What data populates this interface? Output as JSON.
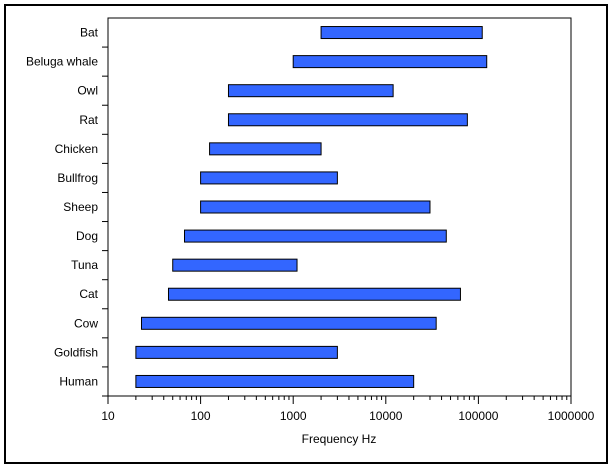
{
  "chart_data": {
    "type": "bar",
    "orientation": "horizontal-range",
    "xlabel": "Frequency  Hz",
    "x_scale": "log",
    "xlim": [
      10,
      1000000
    ],
    "x_ticks": [
      {
        "value": 10,
        "label": "10"
      },
      {
        "value": 100,
        "label": "100"
      },
      {
        "value": 1000,
        "label": "1000"
      },
      {
        "value": 10000,
        "label": "10000"
      },
      {
        "value": 100000,
        "label": "100000"
      },
      {
        "value": 1000000,
        "label": "1000000"
      }
    ],
    "categories": [
      "Bat",
      "Beluga whale",
      "Owl",
      "Rat",
      "Chicken",
      "Bullfrog",
      "Sheep",
      "Dog",
      "Tuna",
      "Cat",
      "Cow",
      "Goldfish",
      "Human"
    ],
    "ranges": [
      [
        2000,
        110000
      ],
      [
        1000,
        123000
      ],
      [
        200,
        12000
      ],
      [
        200,
        76000
      ],
      [
        125,
        2000
      ],
      [
        100,
        3000
      ],
      [
        100,
        30000
      ],
      [
        67,
        45000
      ],
      [
        50,
        1100
      ],
      [
        45,
        64000
      ],
      [
        23,
        35000
      ],
      [
        20,
        3000
      ],
      [
        20,
        20000
      ]
    ],
    "bar_color": "#3366ff",
    "grid": false,
    "legend": "none"
  }
}
